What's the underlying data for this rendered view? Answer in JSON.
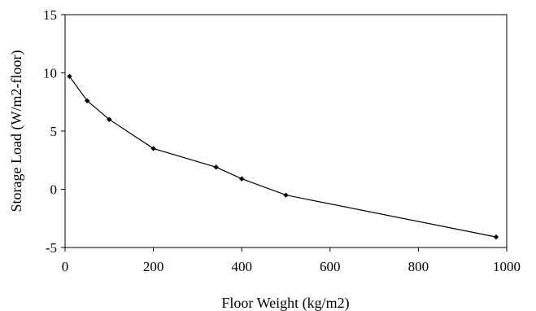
{
  "chart_data": {
    "type": "line",
    "title": "",
    "xlabel": "Floor Weight (kg/m2)",
    "ylabel": "Storage Load (W/m2-floor)",
    "xlim": [
      0,
      1000
    ],
    "ylim": [
      -5,
      15
    ],
    "x_ticks": [
      0,
      200,
      400,
      600,
      800,
      1000
    ],
    "y_ticks": [
      -5,
      0,
      5,
      10,
      15
    ],
    "x_tick_labels": [
      "0",
      "200",
      "400",
      "600",
      "800",
      "1000"
    ],
    "y_tick_labels": [
      "-5",
      "0",
      "5",
      "10",
      "15"
    ],
    "grid": false,
    "series": [
      {
        "x": [
          10,
          50,
          100,
          200,
          342,
          400,
          500,
          976
        ],
        "y": [
          9.7,
          7.6,
          6.0,
          3.5,
          1.9,
          0.9,
          -0.5,
          -4.1
        ],
        "color": "#000000",
        "marker": "diamond"
      }
    ]
  }
}
